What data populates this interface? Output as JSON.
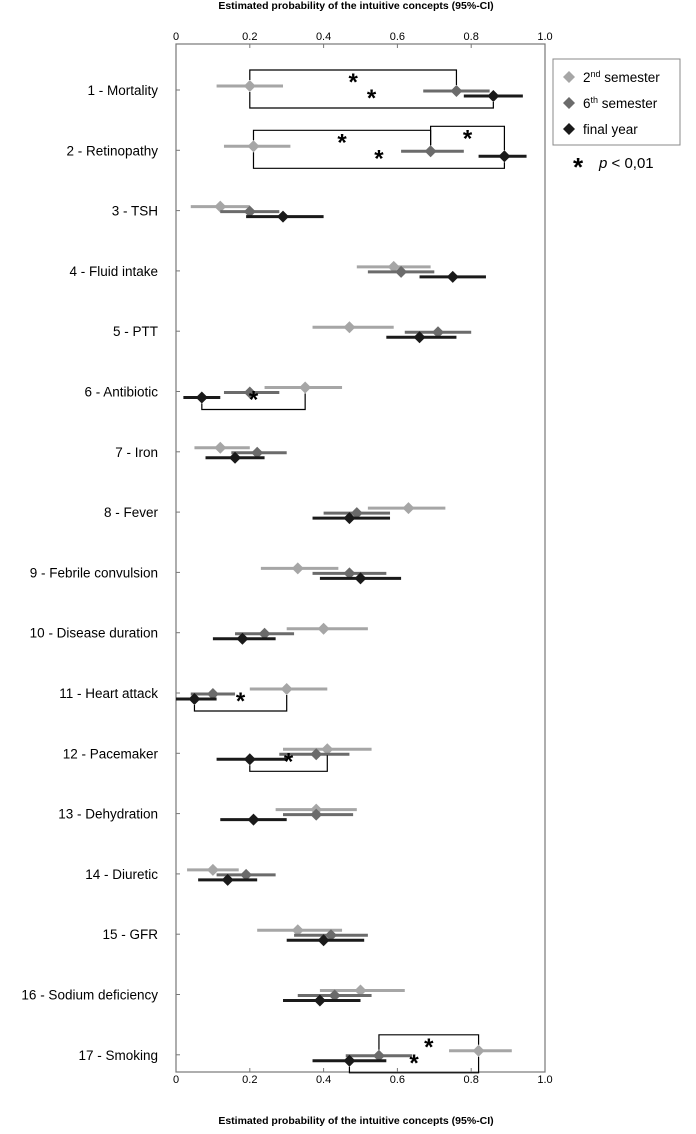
{
  "chart_data": {
    "type": "scatter",
    "title": "Estimated probability of the intuitive concepts (95%-CI)",
    "xlabel": "Estimated probability of the intuitive concepts (95%-CI)",
    "xlim": [
      0,
      1
    ],
    "x_ticks": [
      "0",
      "0.2",
      "0.4",
      "0.6",
      "0.8",
      "1.0"
    ],
    "categories": [
      "1 - Mortality",
      "2 - Retinopathy",
      "3 - TSH",
      "4 - Fluid intake",
      "5 - PTT",
      "6 - Antibiotic",
      "7 - Iron",
      "8 - Fever",
      "9 - Febrile convulsion",
      "10 - Disease duration",
      "11 - Heart attack",
      "12 - Pacemaker",
      "13 - Dehydration",
      "14 - Diuretic",
      "15 - GFR",
      "16 - Sodium deficiency",
      "17 - Smoking"
    ],
    "series": [
      {
        "name": "2nd semester",
        "name_base": "2",
        "name_sup": "nd",
        "name_rest": " semester",
        "color": "#a6a6a6",
        "values": [
          0.2,
          0.21,
          0.12,
          0.59,
          0.47,
          0.35,
          0.12,
          0.63,
          0.33,
          0.4,
          0.3,
          0.41,
          0.38,
          0.1,
          0.33,
          0.5,
          0.82
        ],
        "ci_low": [
          0.11,
          0.13,
          0.04,
          0.49,
          0.37,
          0.24,
          0.05,
          0.52,
          0.23,
          0.3,
          0.2,
          0.29,
          0.27,
          0.03,
          0.22,
          0.39,
          0.74
        ],
        "ci_high": [
          0.29,
          0.31,
          0.2,
          0.69,
          0.59,
          0.45,
          0.2,
          0.73,
          0.44,
          0.52,
          0.41,
          0.53,
          0.49,
          0.17,
          0.45,
          0.62,
          0.91
        ]
      },
      {
        "name": "6th semester",
        "name_base": "6",
        "name_sup": "th",
        "name_rest": " semester",
        "color": "#6b6b6b",
        "values": [
          0.76,
          0.69,
          0.2,
          0.61,
          0.71,
          0.2,
          0.22,
          0.49,
          0.47,
          0.24,
          0.1,
          0.38,
          0.38,
          0.19,
          0.42,
          0.43,
          0.55
        ],
        "ci_low": [
          0.67,
          0.61,
          0.12,
          0.52,
          0.62,
          0.13,
          0.15,
          0.4,
          0.37,
          0.16,
          0.04,
          0.28,
          0.29,
          0.11,
          0.32,
          0.33,
          0.46
        ],
        "ci_high": [
          0.85,
          0.78,
          0.28,
          0.7,
          0.8,
          0.28,
          0.3,
          0.58,
          0.57,
          0.32,
          0.16,
          0.47,
          0.48,
          0.27,
          0.52,
          0.53,
          0.64
        ]
      },
      {
        "name": "final year",
        "color": "#1a1a1a",
        "values": [
          0.86,
          0.89,
          0.29,
          0.75,
          0.66,
          0.07,
          0.16,
          0.47,
          0.5,
          0.18,
          0.05,
          0.2,
          0.21,
          0.14,
          0.4,
          0.39,
          0.47
        ],
        "ci_low": [
          0.78,
          0.82,
          0.19,
          0.66,
          0.57,
          0.02,
          0.08,
          0.37,
          0.39,
          0.1,
          0.0,
          0.11,
          0.12,
          0.06,
          0.3,
          0.29,
          0.37
        ],
        "ci_high": [
          0.94,
          0.95,
          0.4,
          0.84,
          0.76,
          0.12,
          0.24,
          0.58,
          0.61,
          0.27,
          0.11,
          0.3,
          0.3,
          0.22,
          0.51,
          0.5,
          0.57
        ]
      }
    ],
    "significance": [
      {
        "category": "1 - Mortality",
        "from": "2nd semester",
        "to": "6th semester",
        "symbol": "*"
      },
      {
        "category": "1 - Mortality",
        "from": "2nd semester",
        "to": "final year",
        "symbol": "*"
      },
      {
        "category": "2 - Retinopathy",
        "from": "2nd semester",
        "to": "6th semester",
        "symbol": "*"
      },
      {
        "category": "2 - Retinopathy",
        "from": "6th semester",
        "to": "final year",
        "symbol": "*"
      },
      {
        "category": "2 - Retinopathy",
        "from": "2nd semester",
        "to": "final year",
        "symbol": "*"
      },
      {
        "category": "6 - Antibiotic",
        "from": "final year",
        "to": "2nd semester",
        "symbol": "*"
      },
      {
        "category": "11 - Heart attack",
        "from": "final year",
        "to": "2nd semester",
        "symbol": "*"
      },
      {
        "category": "12 - Pacemaker",
        "from": "final year",
        "to": "2nd semester",
        "symbol": "*"
      },
      {
        "category": "17 - Smoking",
        "from": "6th semester",
        "to": "2nd semester",
        "symbol": "*"
      },
      {
        "category": "17 - Smoking",
        "from": "final year",
        "to": "2nd semester",
        "symbol": "*"
      }
    ],
    "legend": {
      "position": "top-right",
      "p_symbol": "*",
      "p_label": "p",
      "p_rest": " < 0,01"
    },
    "grid": false
  }
}
